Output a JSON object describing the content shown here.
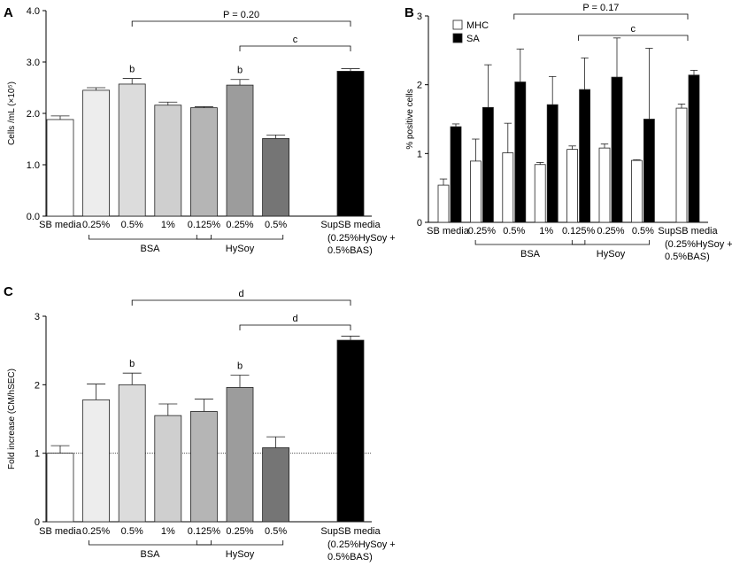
{
  "chart_data": [
    {
      "panel": "A",
      "type": "bar",
      "ylabel": "Cells /mL (×10⁵)",
      "ylim": [
        0,
        4
      ],
      "yticks": [
        "0.0",
        "1.0",
        "2.0",
        "3.0",
        "4.0"
      ],
      "categories": [
        "SB media",
        "0.25%",
        "0.5%",
        "1%",
        "0.125%",
        "0.25%",
        "0.5%",
        "SupSB media"
      ],
      "category_sub": [
        "(0.25%HySoy +",
        "0.5%BAS)"
      ],
      "values": [
        1.88,
        2.45,
        2.57,
        2.16,
        2.11,
        2.55,
        1.51,
        2.82
      ],
      "errors": [
        0.07,
        0.05,
        0.11,
        0.06,
        0.02,
        0.11,
        0.07,
        0.05
      ],
      "colors": [
        "#ffffff",
        "#ededed",
        "#dcdcdc",
        "#cfcfcf",
        "#b5b5b5",
        "#9c9c9c",
        "#757575",
        "#000000"
      ],
      "bar_labels": [
        "",
        "",
        "b",
        "",
        "",
        "b",
        "",
        ""
      ],
      "groups": [
        {
          "label": "BSA",
          "from": 1,
          "to": 4
        },
        {
          "label": "HySoy",
          "from": 4,
          "to": 6
        }
      ],
      "brackets": [
        {
          "from": 2,
          "to": 7,
          "label": "P = 0.20"
        },
        {
          "from": 5,
          "to": 7,
          "label": "c"
        }
      ]
    },
    {
      "panel": "B",
      "type": "bar",
      "ylabel": "% positive cells",
      "ylim": [
        0,
        3
      ],
      "yticks": [
        "0",
        "1",
        "2",
        "3"
      ],
      "categories": [
        "SB media",
        "0.25%",
        "0.5%",
        "1%",
        "0.125%",
        "0.25%",
        "0.5%",
        "SupSB media"
      ],
      "category_sub": [
        "(0.25%HySoy +",
        "0.5%BAS)"
      ],
      "series": [
        {
          "name": "MHC",
          "color": "#ffffff",
          "values": [
            0.54,
            0.89,
            1.01,
            0.84,
            1.06,
            1.08,
            0.9,
            1.66
          ],
          "errors": [
            0.09,
            0.32,
            0.43,
            0.03,
            0.05,
            0.06,
            0.01,
            0.06
          ]
        },
        {
          "name": "SA",
          "color": "#000000",
          "values": [
            1.39,
            1.67,
            2.04,
            1.71,
            1.93,
            2.11,
            1.5,
            2.14
          ],
          "errors": [
            0.04,
            0.62,
            0.48,
            0.41,
            0.46,
            0.57,
            1.03,
            0.07
          ]
        }
      ],
      "groups": [
        {
          "label": "BSA",
          "from": 1,
          "to": 4
        },
        {
          "label": "HySoy",
          "from": 4,
          "to": 6
        }
      ],
      "brackets": [
        {
          "from": 2,
          "to": 7,
          "label": "P = 0.17"
        },
        {
          "from": 4,
          "to": 7,
          "label": "c"
        }
      ]
    },
    {
      "panel": "C",
      "type": "bar",
      "ylabel": "Fold increase (CM/hSEC)",
      "ylim": [
        0,
        3
      ],
      "yticks": [
        "0",
        "1",
        "2",
        "3"
      ],
      "reference_line": 1,
      "categories": [
        "SB media",
        "0.25%",
        "0.5%",
        "1%",
        "0.125%",
        "0.25%",
        "0.5%",
        "SupSB media"
      ],
      "category_sub": [
        "(0.25%HySoy +",
        "0.5%BAS)"
      ],
      "values": [
        1.0,
        1.78,
        2.0,
        1.55,
        1.61,
        1.96,
        1.08,
        2.65
      ],
      "errors": [
        0.11,
        0.23,
        0.17,
        0.17,
        0.18,
        0.18,
        0.16,
        0.06
      ],
      "colors": [
        "#ffffff",
        "#ededed",
        "#dcdcdc",
        "#cfcfcf",
        "#b5b5b5",
        "#9c9c9c",
        "#757575",
        "#000000"
      ],
      "bar_labels": [
        "",
        "",
        "b",
        "",
        "",
        "b",
        "",
        ""
      ],
      "groups": [
        {
          "label": "BSA",
          "from": 1,
          "to": 4
        },
        {
          "label": "HySoy",
          "from": 4,
          "to": 6
        }
      ],
      "brackets": [
        {
          "from": 2,
          "to": 7,
          "label": "d"
        },
        {
          "from": 5,
          "to": 7,
          "label": "d"
        }
      ]
    }
  ]
}
